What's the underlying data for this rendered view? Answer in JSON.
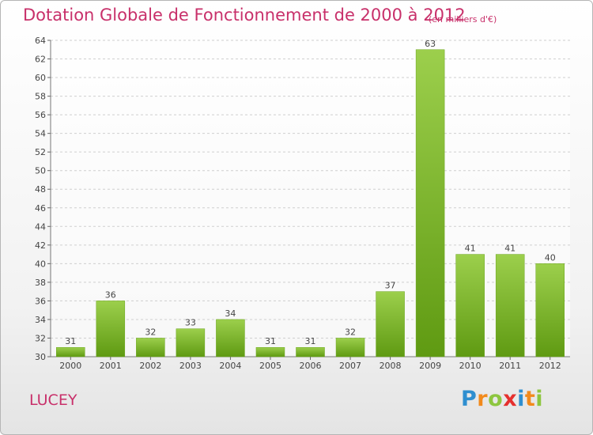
{
  "chart_data": {
    "type": "bar",
    "title": "Dotation Globale de Fonctionnement de 2000 à 2012",
    "unit_label": "(en milliers d'€)",
    "categories": [
      "2000",
      "2001",
      "2002",
      "2003",
      "2004",
      "2005",
      "2006",
      "2007",
      "2008",
      "2009",
      "2010",
      "2011",
      "2012"
    ],
    "values": [
      31,
      36,
      32,
      33,
      34,
      31,
      31,
      32,
      37,
      63,
      41,
      41,
      40
    ],
    "ylim": [
      30,
      64
    ],
    "yticks": [
      30,
      32,
      34,
      36,
      38,
      40,
      42,
      44,
      46,
      48,
      50,
      52,
      54,
      56,
      58,
      60,
      62,
      64
    ],
    "xlabel": "",
    "ylabel": "",
    "grid": true,
    "bar_colors": {
      "top": "#9ccf4c",
      "bottom": "#5f9a12"
    }
  },
  "commune": "LUCEY",
  "logo": {
    "letters": [
      "P",
      "r",
      "o",
      "x",
      "i",
      "t",
      "i"
    ],
    "colors": [
      "#2f8fd0",
      "#f28a1c",
      "#8dc63f",
      "#e5302e",
      "#2f8fd0",
      "#f28a1c",
      "#8dc63f"
    ]
  },
  "colors": {
    "accent": "#c8306a"
  }
}
